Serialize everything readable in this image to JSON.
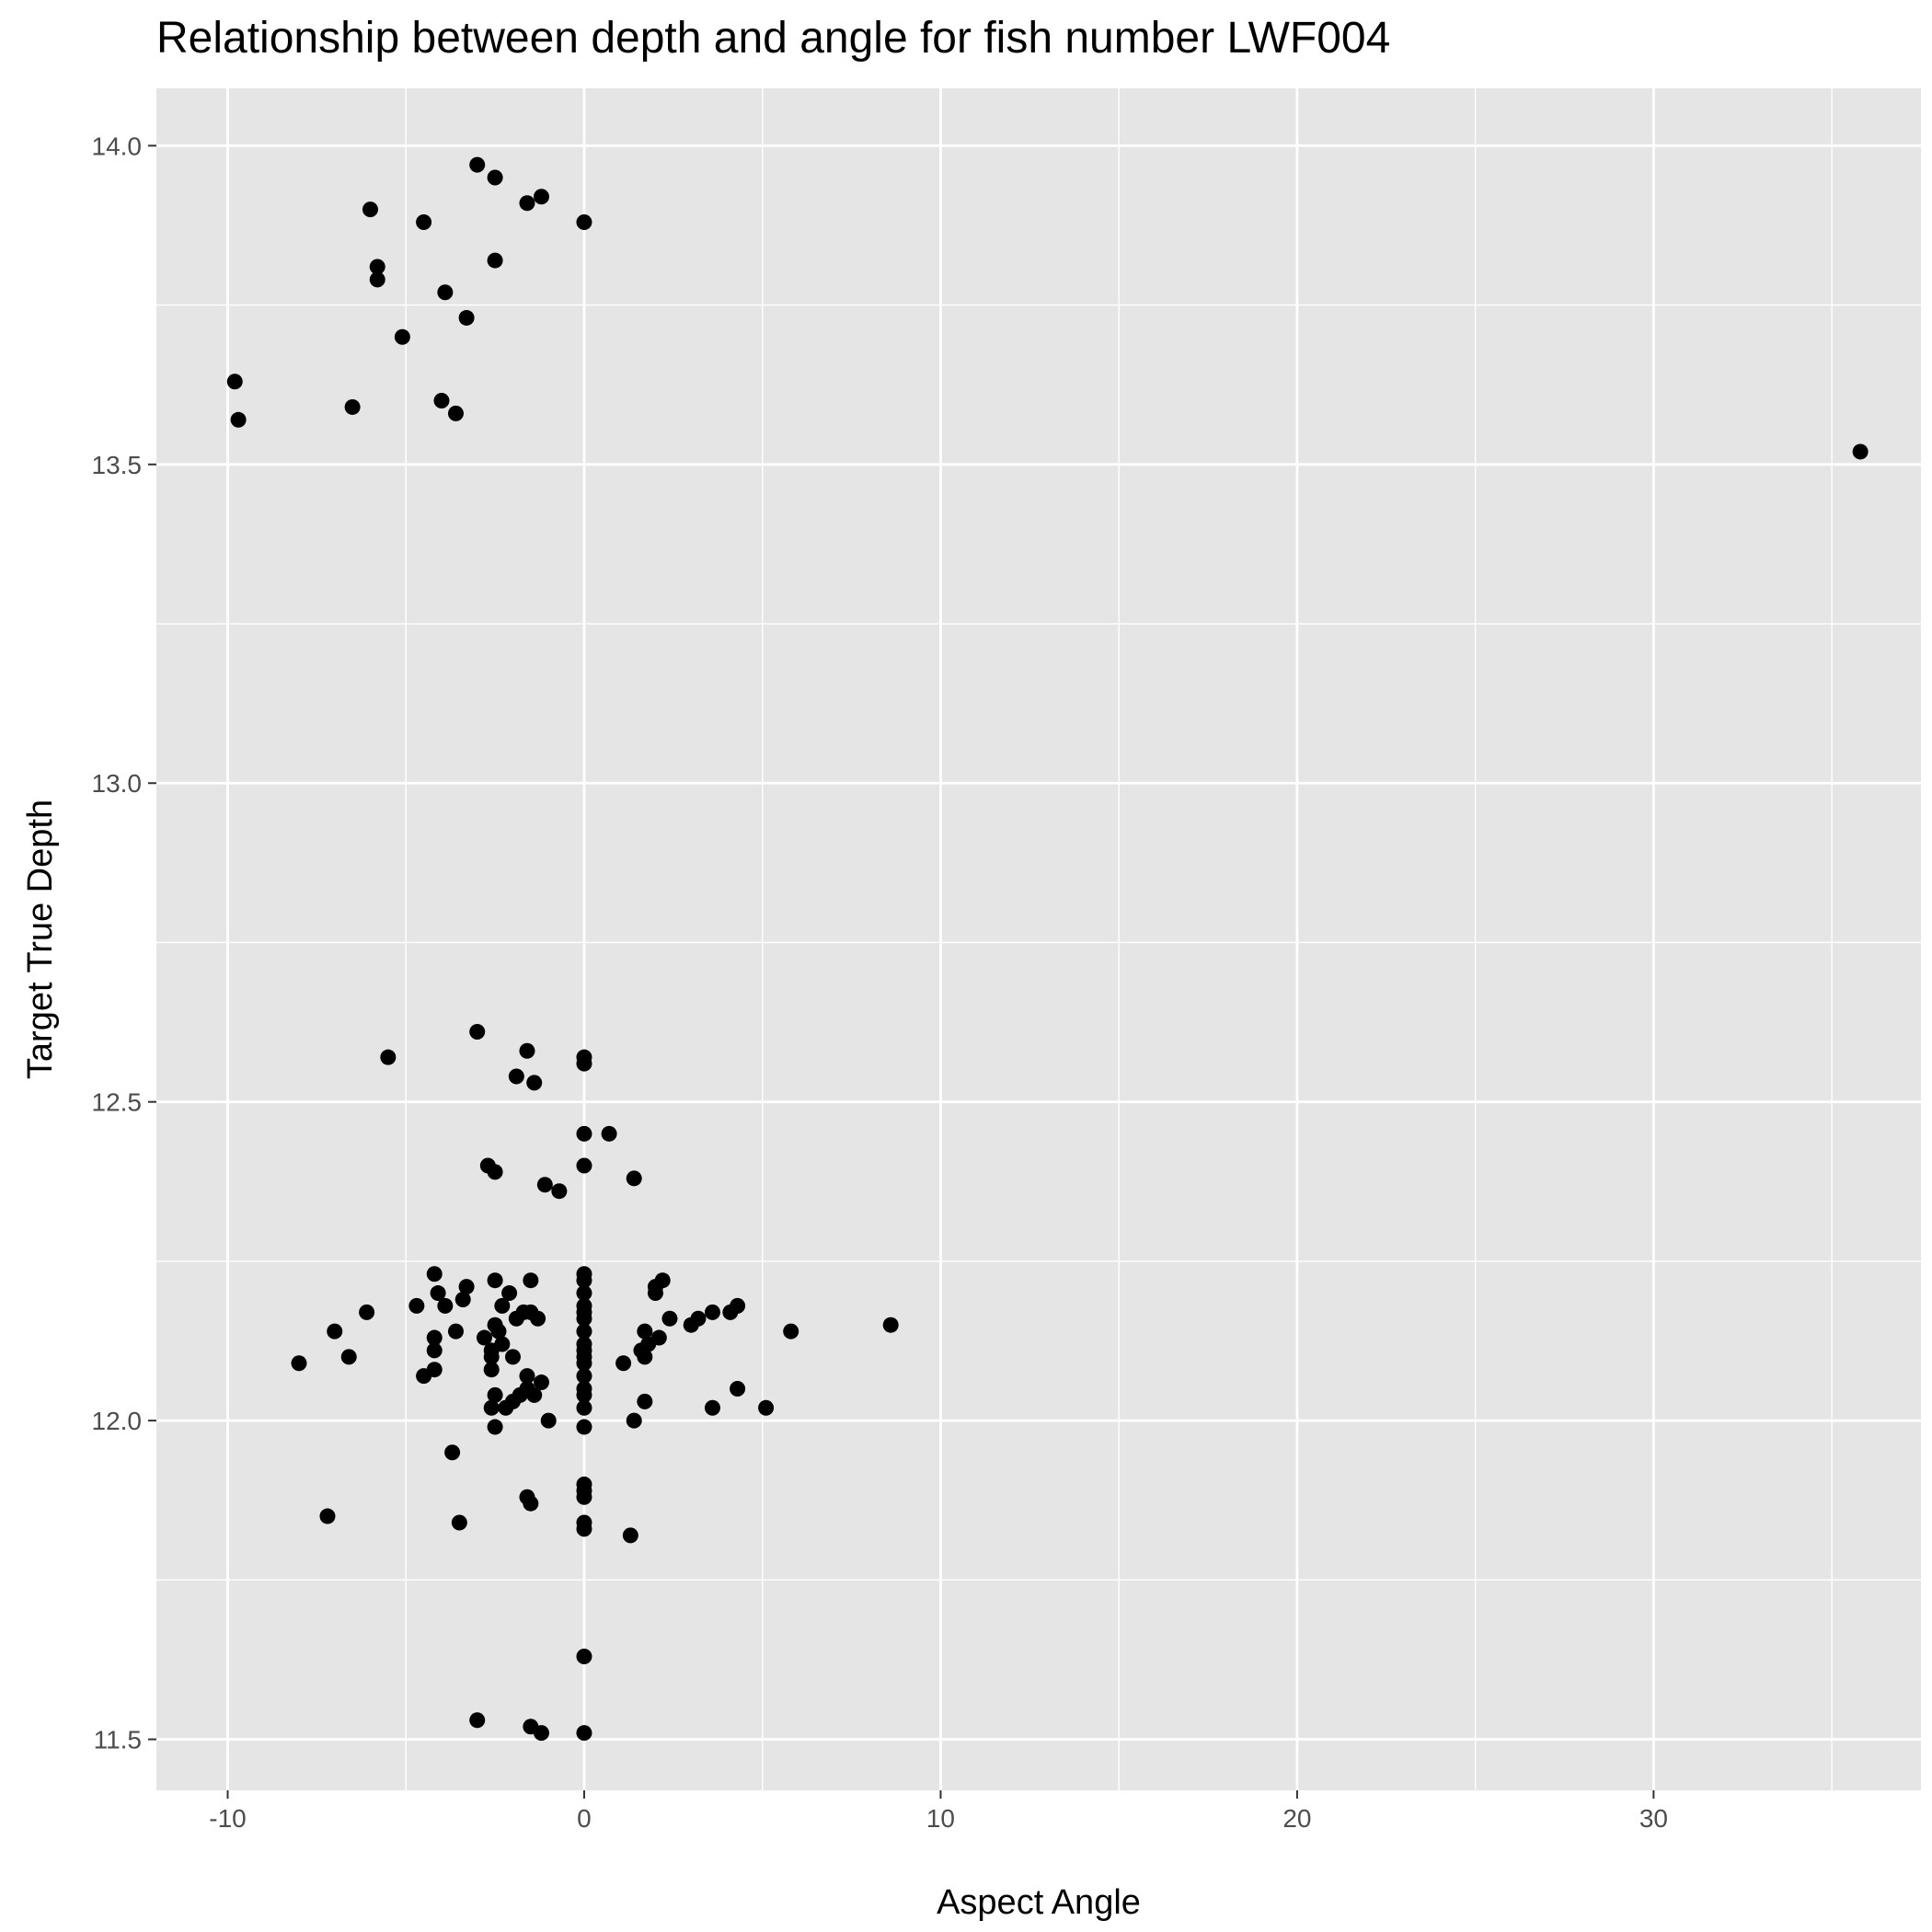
{
  "chart_data": {
    "type": "scatter",
    "title": "Relationship between depth and angle for fish number LWF004",
    "xlabel": "Aspect Angle",
    "ylabel": "Target True Depth",
    "xlim": [
      -12,
      37.5
    ],
    "ylim": [
      11.42,
      14.09
    ],
    "x_ticks": [
      -10,
      0,
      10,
      20,
      30
    ],
    "x_tick_labels": [
      "-10",
      "0",
      "10",
      "20",
      "30"
    ],
    "y_ticks": [
      11.5,
      12.0,
      12.5,
      13.0,
      13.5,
      14.0
    ],
    "y_tick_labels": [
      "11.5",
      "12.0",
      "12.5",
      "13.0",
      "13.5",
      "14.0"
    ],
    "grid": true,
    "colors": {
      "panel": "#e5e5e5",
      "grid": "#ffffff",
      "point": "#000000",
      "tick": "#4d4d4d"
    },
    "points": [
      [
        -3.0,
        13.97
      ],
      [
        -2.5,
        13.95
      ],
      [
        -1.2,
        13.92
      ],
      [
        -1.6,
        13.91
      ],
      [
        -6.0,
        13.9
      ],
      [
        -4.5,
        13.88
      ],
      [
        0.0,
        13.88
      ],
      [
        -2.5,
        13.82
      ],
      [
        -5.8,
        13.81
      ],
      [
        -5.8,
        13.79
      ],
      [
        -3.9,
        13.77
      ],
      [
        -3.3,
        13.73
      ],
      [
        -5.1,
        13.7
      ],
      [
        -9.8,
        13.63
      ],
      [
        -4.0,
        13.6
      ],
      [
        -6.5,
        13.59
      ],
      [
        -3.6,
        13.58
      ],
      [
        -9.7,
        13.57
      ],
      [
        35.8,
        13.52
      ],
      [
        -3.0,
        12.61
      ],
      [
        -1.6,
        12.58
      ],
      [
        -5.5,
        12.57
      ],
      [
        0.0,
        12.57
      ],
      [
        0.0,
        12.56
      ],
      [
        -1.9,
        12.54
      ],
      [
        -1.4,
        12.53
      ],
      [
        0.0,
        12.45
      ],
      [
        0.7,
        12.45
      ],
      [
        0.0,
        12.4
      ],
      [
        -2.7,
        12.4
      ],
      [
        -2.5,
        12.39
      ],
      [
        1.4,
        12.38
      ],
      [
        -1.1,
        12.37
      ],
      [
        -0.7,
        12.36
      ],
      [
        -4.2,
        12.23
      ],
      [
        -2.5,
        12.22
      ],
      [
        -1.5,
        12.22
      ],
      [
        0.0,
        12.23
      ],
      [
        0.0,
        12.22
      ],
      [
        2.2,
        12.22
      ],
      [
        -3.3,
        12.21
      ],
      [
        -2.1,
        12.2
      ],
      [
        0.0,
        12.2
      ],
      [
        2.0,
        12.21
      ],
      [
        -4.1,
        12.2
      ],
      [
        -3.4,
        12.19
      ],
      [
        2.0,
        12.2
      ],
      [
        -3.9,
        12.18
      ],
      [
        -2.3,
        12.18
      ],
      [
        -4.7,
        12.18
      ],
      [
        -6.1,
        12.17
      ],
      [
        -1.7,
        12.17
      ],
      [
        -1.5,
        12.17
      ],
      [
        0.0,
        12.18
      ],
      [
        0.0,
        12.17
      ],
      [
        3.6,
        12.17
      ],
      [
        4.3,
        12.18
      ],
      [
        4.1,
        12.17
      ],
      [
        -1.3,
        12.16
      ],
      [
        -1.9,
        12.16
      ],
      [
        0.0,
        12.16
      ],
      [
        2.4,
        12.16
      ],
      [
        3.2,
        12.16
      ],
      [
        3.0,
        12.15
      ],
      [
        8.6,
        12.15
      ],
      [
        -2.5,
        12.15
      ],
      [
        -7.0,
        12.14
      ],
      [
        -3.6,
        12.14
      ],
      [
        -2.4,
        12.14
      ],
      [
        0.0,
        12.14
      ],
      [
        1.7,
        12.14
      ],
      [
        5.8,
        12.14
      ],
      [
        -4.2,
        12.13
      ],
      [
        -2.8,
        12.13
      ],
      [
        -2.3,
        12.12
      ],
      [
        0.0,
        12.12
      ],
      [
        2.1,
        12.13
      ],
      [
        1.8,
        12.12
      ],
      [
        -2.6,
        12.11
      ],
      [
        0.0,
        12.11
      ],
      [
        1.6,
        12.11
      ],
      [
        -4.2,
        12.11
      ],
      [
        -2.6,
        12.1
      ],
      [
        -2.0,
        12.1
      ],
      [
        -6.6,
        12.1
      ],
      [
        0.0,
        12.1
      ],
      [
        1.7,
        12.1
      ],
      [
        -8.0,
        12.09
      ],
      [
        0.0,
        12.09
      ],
      [
        1.1,
        12.09
      ],
      [
        -2.6,
        12.08
      ],
      [
        -4.2,
        12.08
      ],
      [
        -4.5,
        12.07
      ],
      [
        -1.6,
        12.07
      ],
      [
        0.0,
        12.07
      ],
      [
        -1.2,
        12.06
      ],
      [
        -1.6,
        12.05
      ],
      [
        0.0,
        12.05
      ],
      [
        4.3,
        12.05
      ],
      [
        -2.5,
        12.04
      ],
      [
        -1.4,
        12.04
      ],
      [
        -1.8,
        12.04
      ],
      [
        0.0,
        12.04
      ],
      [
        -2.0,
        12.03
      ],
      [
        -2.2,
        12.02
      ],
      [
        1.7,
        12.03
      ],
      [
        0.0,
        12.02
      ],
      [
        -2.6,
        12.02
      ],
      [
        3.6,
        12.02
      ],
      [
        5.1,
        12.02
      ],
      [
        -1.0,
        12.0
      ],
      [
        1.4,
        12.0
      ],
      [
        -2.5,
        11.99
      ],
      [
        0.0,
        11.99
      ],
      [
        -3.7,
        11.95
      ],
      [
        0.0,
        11.9
      ],
      [
        0.0,
        11.89
      ],
      [
        -1.6,
        11.88
      ],
      [
        0.0,
        11.88
      ],
      [
        -1.5,
        11.87
      ],
      [
        -7.2,
        11.85
      ],
      [
        -3.5,
        11.84
      ],
      [
        0.0,
        11.84
      ],
      [
        0.0,
        11.83
      ],
      [
        1.3,
        11.82
      ],
      [
        0.0,
        11.63
      ],
      [
        -3.0,
        11.53
      ],
      [
        -1.5,
        11.52
      ],
      [
        -1.2,
        11.51
      ],
      [
        0.0,
        11.51
      ]
    ]
  }
}
